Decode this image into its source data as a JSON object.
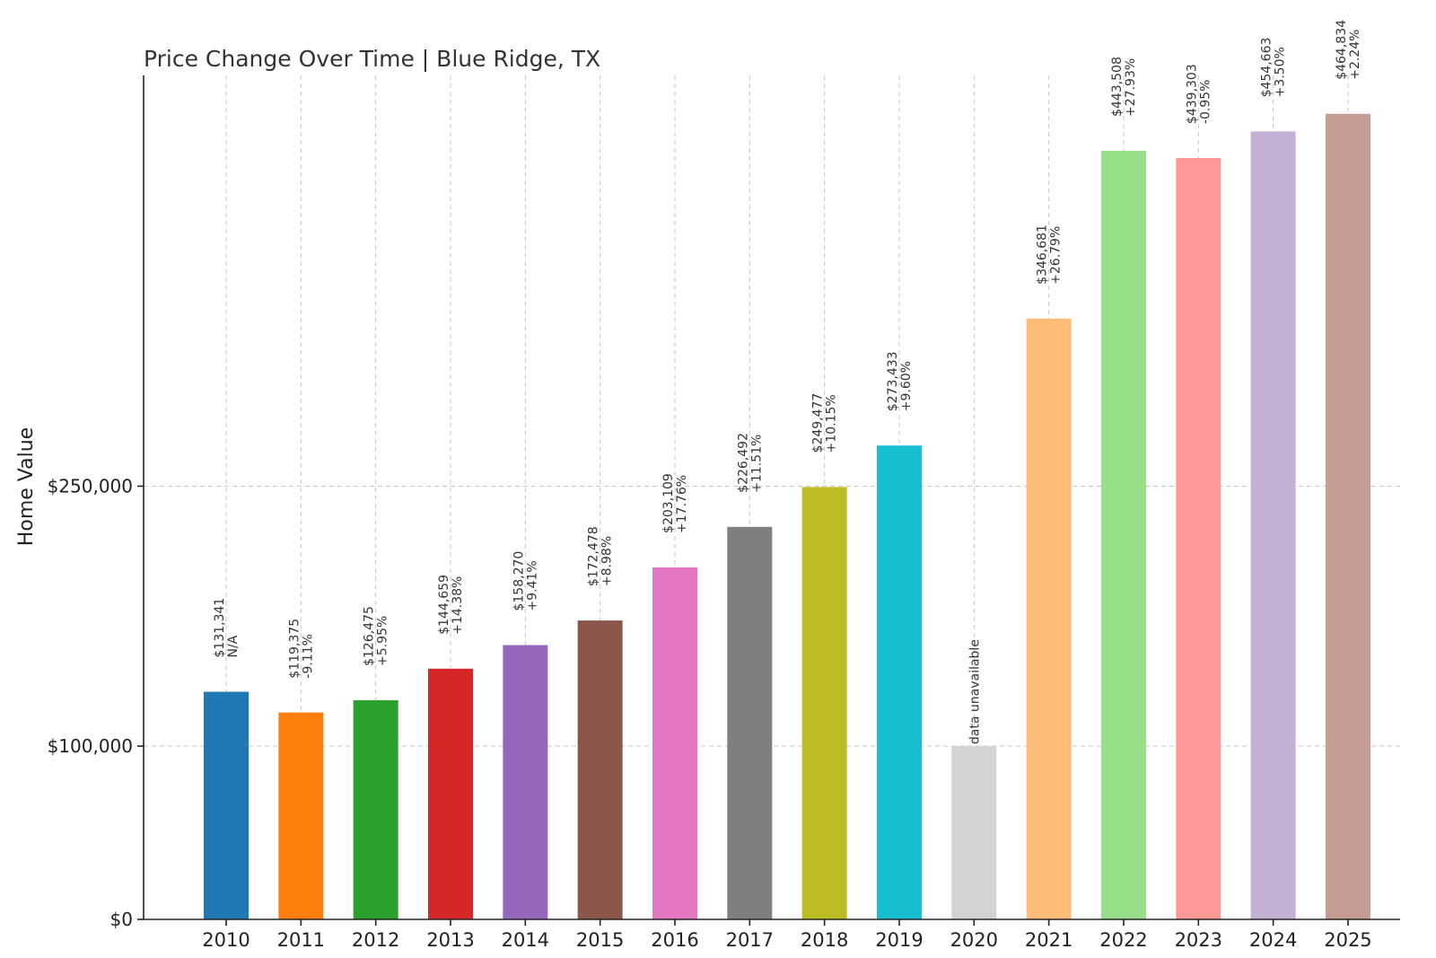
{
  "chart_data": {
    "type": "bar",
    "title": "Price Change Over Time | Blue Ridge, TX",
    "xlabel": "",
    "ylabel": "Home Value",
    "ylim": [
      0,
      487000
    ],
    "yticks": [
      {
        "value": 0,
        "label": "$0"
      },
      {
        "value": 100000,
        "label": "$100,000"
      },
      {
        "value": 250000,
        "label": "$250,000"
      }
    ],
    "grid": true,
    "categories": [
      "2010",
      "2011",
      "2012",
      "2013",
      "2014",
      "2015",
      "2016",
      "2017",
      "2018",
      "2019",
      "2020",
      "2021",
      "2022",
      "2023",
      "2024",
      "2025"
    ],
    "values": [
      131341,
      119375,
      126475,
      144659,
      158270,
      172478,
      203109,
      226492,
      249477,
      273433,
      100000,
      346681,
      443508,
      439303,
      454663,
      464834
    ],
    "value_labels": [
      "$131,341",
      "$119,375",
      "$126,475",
      "$144,659",
      "$158,270",
      "$172,478",
      "$203,109",
      "$226,492",
      "$249,477",
      "$273,433",
      "",
      "$346,681",
      "$443,508",
      "$439,303",
      "$454,663",
      "$464,834"
    ],
    "change_labels": [
      "N/A",
      "-9.11%",
      "+5.95%",
      "+14.38%",
      "+9.41%",
      "+8.98%",
      "+17.76%",
      "+11.51%",
      "+10.15%",
      "+9.60%",
      "",
      "+26.79%",
      "+27.93%",
      "-0.95%",
      "+3.50%",
      "+2.24%"
    ],
    "annotations": [
      "",
      "",
      "",
      "",
      "",
      "",
      "",
      "",
      "",
      "",
      "data unavailable",
      "",
      "",
      "",
      "",
      ""
    ],
    "colors": [
      "#1f77b4",
      "#ff7f0e",
      "#2ca02c",
      "#d62728",
      "#9467bd",
      "#8c564b",
      "#e377c2",
      "#7f7f7f",
      "#bcbd22",
      "#17becf",
      "#d3d3d3",
      "#ffbb78",
      "#98df8a",
      "#ff9896",
      "#c5b0d5",
      "#c49c94"
    ]
  }
}
